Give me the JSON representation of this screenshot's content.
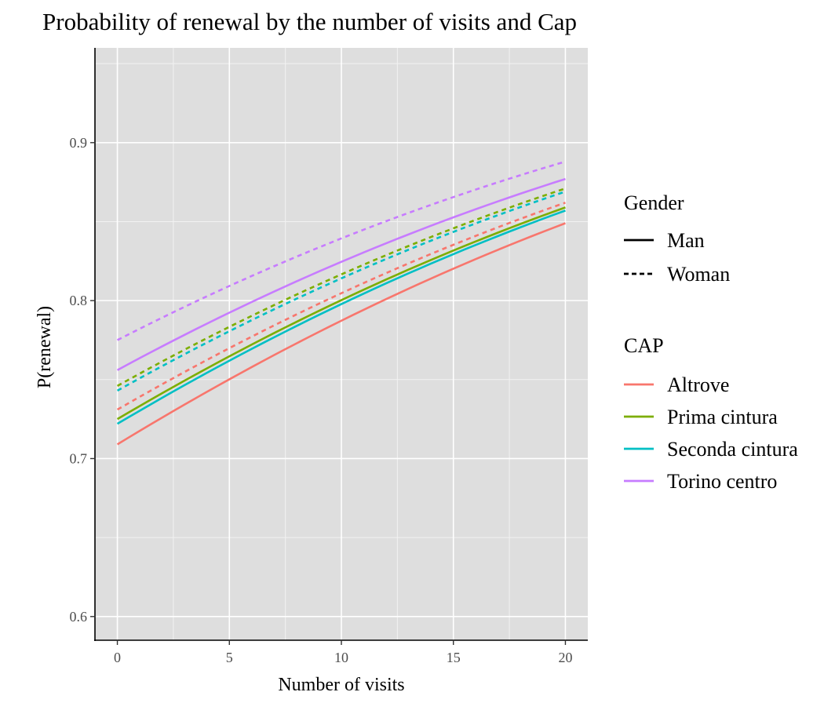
{
  "chart_data": {
    "type": "line",
    "title": "Probability of renewal by the number of visits and Cap",
    "xlabel": "Number of visits",
    "ylabel": "P(renewal)",
    "xlim": [
      -1,
      21
    ],
    "ylim": [
      0.585,
      0.96
    ],
    "x_ticks": [
      0,
      5,
      10,
      15,
      20
    ],
    "x_tick_labels": [
      "0",
      "5",
      "10",
      "15",
      "20"
    ],
    "y_ticks": [
      0.6,
      0.7,
      0.8,
      0.9
    ],
    "y_tick_labels": [
      "0.6",
      "0.7",
      "0.8",
      "0.9"
    ],
    "grid": true,
    "background": "#dedede",
    "legend_position": "right",
    "legends": [
      {
        "title": "Gender",
        "entries": [
          {
            "label": "Man",
            "dash": "solid"
          },
          {
            "label": "Woman",
            "dash": "dashed"
          }
        ]
      },
      {
        "title": "CAP",
        "entries": [
          {
            "label": "Altrove",
            "color": "#f8766d"
          },
          {
            "label": "Prima cintura",
            "color": "#7cae00"
          },
          {
            "label": "Seconda cintura",
            "color": "#00bfc4"
          },
          {
            "label": "Torino centro",
            "color": "#c77cff"
          }
        ]
      }
    ],
    "series": [
      {
        "cap": "Altrove",
        "gender": "Man",
        "color": "#f8766d",
        "dash": "solid",
        "x": [
          0,
          20
        ],
        "y": [
          0.709,
          0.849
        ]
      },
      {
        "cap": "Prima cintura",
        "gender": "Man",
        "color": "#7cae00",
        "dash": "solid",
        "x": [
          0,
          20
        ],
        "y": [
          0.725,
          0.859
        ]
      },
      {
        "cap": "Seconda cintura",
        "gender": "Man",
        "color": "#00bfc4",
        "dash": "solid",
        "x": [
          0,
          20
        ],
        "y": [
          0.722,
          0.857
        ]
      },
      {
        "cap": "Torino centro",
        "gender": "Man",
        "color": "#c77cff",
        "dash": "solid",
        "x": [
          0,
          20
        ],
        "y": [
          0.756,
          0.877
        ]
      },
      {
        "cap": "Altrove",
        "gender": "Woman",
        "color": "#f8766d",
        "dash": "dashed",
        "x": [
          0,
          20
        ],
        "y": [
          0.731,
          0.862
        ]
      },
      {
        "cap": "Prima cintura",
        "gender": "Woman",
        "color": "#7cae00",
        "dash": "dashed",
        "x": [
          0,
          20
        ],
        "y": [
          0.746,
          0.871
        ]
      },
      {
        "cap": "Seconda cintura",
        "gender": "Woman",
        "color": "#00bfc4",
        "dash": "dashed",
        "x": [
          0,
          20
        ],
        "y": [
          0.743,
          0.869
        ]
      },
      {
        "cap": "Torino centro",
        "gender": "Woman",
        "color": "#c77cff",
        "dash": "dashed",
        "x": [
          0,
          20
        ],
        "y": [
          0.775,
          0.888
        ]
      }
    ]
  }
}
